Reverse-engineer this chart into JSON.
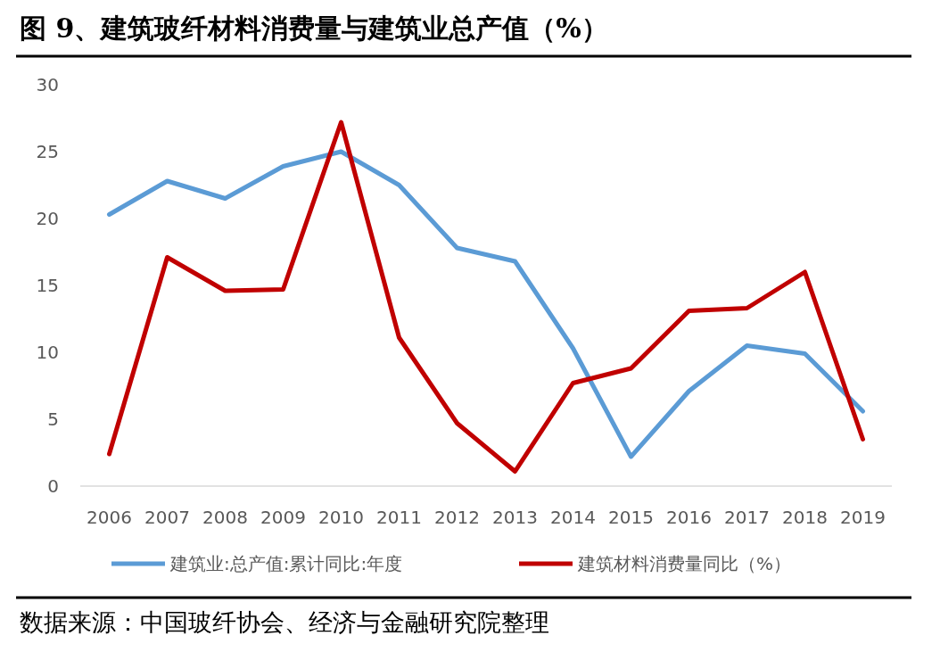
{
  "chart_data": {
    "type": "line",
    "title": "图 9、建筑玻纤材料消费量与建筑业总产值（%）",
    "categories": [
      "2006",
      "2007",
      "2008",
      "2009",
      "2010",
      "2011",
      "2012",
      "2013",
      "2014",
      "2015",
      "2016",
      "2017",
      "2018",
      "2019"
    ],
    "series": [
      {
        "name": "建筑业:总产值:累计同比:年度",
        "color": "#5b9bd5",
        "values": [
          20.3,
          22.8,
          21.5,
          23.9,
          25.0,
          22.5,
          17.8,
          16.8,
          10.3,
          2.2,
          7.1,
          10.5,
          9.9,
          5.6
        ]
      },
      {
        "name": "建筑材料消费量同比（%）",
        "color": "#c00000",
        "values": [
          2.4,
          17.1,
          14.6,
          14.7,
          27.2,
          11.1,
          4.7,
          1.1,
          7.7,
          8.8,
          13.1,
          13.3,
          16.0,
          3.5
        ]
      }
    ],
    "ylim": [
      0,
      30
    ],
    "yticks": [
      0,
      5,
      10,
      15,
      20,
      25,
      30
    ],
    "grid": false,
    "legend": "bottom",
    "annotations": [
      "数据来源：中国玻纤协会、经济与金融研究院整理"
    ]
  }
}
